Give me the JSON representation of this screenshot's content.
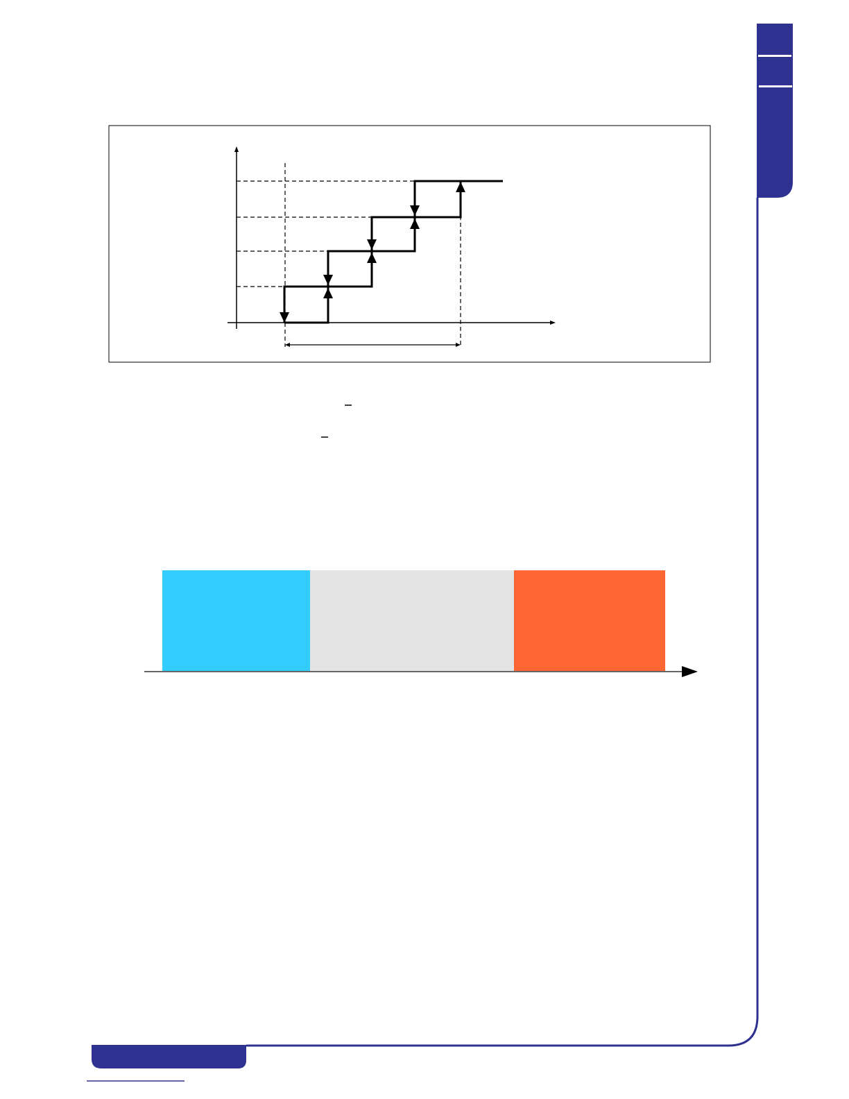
{
  "colors": {
    "brand": "#2E3190",
    "band_low": "#33CCFF",
    "band_mid": "#E3E3E3",
    "band_high": "#FF6633",
    "line": "#000000"
  },
  "figure": {
    "type": "staircase-hysteresis-diagram",
    "steps": 4,
    "up_arrows": 4,
    "down_arrows": 4
  },
  "band": {
    "segments": [
      "low",
      "mid",
      "high"
    ]
  }
}
